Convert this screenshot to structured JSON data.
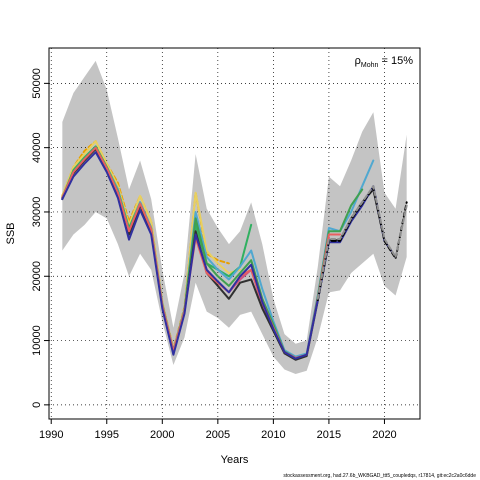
{
  "chart_data": {
    "type": "line",
    "title": "",
    "xlabel": "Years",
    "ylabel": "SSB",
    "xlim": [
      1989.8,
      2023.2
    ],
    "ylim": [
      -2200,
      55500
    ],
    "x_ticks": [
      1990,
      1995,
      2000,
      2005,
      2010,
      2015,
      2020
    ],
    "y_ticks": [
      0,
      10000,
      20000,
      30000,
      40000,
      50000
    ],
    "grid": true,
    "grid_style": "dotted",
    "annotation": {
      "rho_symbol": "ρ",
      "rho_subscript": "Mohn",
      "rho_value": " = 15%"
    },
    "footer": "stockassessment.org, had.27.6b_WKBGAD_ttt5_coupledqs, r17814, git:ec2c2a0c6dde",
    "band": {
      "x": [
        1991,
        1992,
        1993,
        1994,
        1995,
        1996,
        1997,
        1998,
        1999,
        2000,
        2001,
        2002,
        2003,
        2004,
        2005,
        2006,
        2007,
        2008,
        2009,
        2010,
        2011,
        2012,
        2013,
        2014,
        2015,
        2016,
        2017,
        2018,
        2019,
        2020,
        2021,
        2022
      ],
      "upper": [
        44000,
        48500,
        51000,
        53500,
        49000,
        41500,
        33500,
        38000,
        32000,
        21000,
        12000,
        20500,
        39000,
        30500,
        27500,
        25000,
        27000,
        31500,
        25000,
        16500,
        11000,
        9500,
        10000,
        21500,
        35500,
        34000,
        38000,
        42500,
        45500,
        33000,
        30500,
        42000
      ],
      "lower": [
        24000,
        26500,
        28000,
        30000,
        29000,
        25000,
        20000,
        23500,
        21000,
        13000,
        6200,
        10500,
        19000,
        14500,
        13500,
        12000,
        14000,
        14500,
        11000,
        7500,
        5500,
        4800,
        5300,
        10500,
        17500,
        17800,
        20500,
        22000,
        23500,
        18500,
        17000,
        23000
      ]
    },
    "series": [
      {
        "color": "#e8a000",
        "dashed": true,
        "x": [
          1991,
          1992,
          1993,
          1994,
          1995,
          1996,
          1997,
          1998,
          1999,
          2000,
          2001,
          2002,
          2003,
          2004,
          2005,
          2006
        ],
        "values": [
          32500,
          37000,
          39500,
          41000,
          37500,
          34500,
          28500,
          32500,
          28500,
          16000,
          8700,
          15200,
          33000,
          23500,
          22500,
          22000
        ]
      },
      {
        "color": "#e8d060",
        "x": [
          1991,
          1992,
          1993,
          1994,
          1995,
          1996,
          1997,
          1998,
          1999,
          2000,
          2001,
          2002,
          2003,
          2004,
          2005,
          2006,
          2007
        ],
        "values": [
          32500,
          37000,
          39000,
          41000,
          37500,
          34000,
          28000,
          32500,
          28500,
          16000,
          8600,
          15000,
          33000,
          24000,
          22000,
          20500,
          21000
        ]
      },
      {
        "color": "#d05080",
        "x": [
          1991,
          1992,
          1993,
          1994,
          1995,
          1996,
          1997,
          1998,
          1999,
          2000,
          2001,
          2002,
          2003,
          2004,
          2005,
          2006,
          2007,
          2008,
          2009,
          2010,
          2011,
          2012,
          2013,
          2014,
          2015
        ],
        "values": [
          32200,
          36200,
          38200,
          40000,
          36800,
          33000,
          27000,
          31500,
          27500,
          15500,
          8400,
          14800,
          27000,
          21000,
          19000,
          17500,
          19500,
          21000,
          15500,
          12000,
          8200,
          7200,
          7800,
          16500,
          26000
        ]
      },
      {
        "color": "#30b060",
        "x": [
          1991,
          1992,
          1993,
          1994,
          1995,
          1996,
          1997,
          1998,
          1999,
          2000,
          2001,
          2002,
          2003,
          2004,
          2005,
          2006,
          2007,
          2008
        ],
        "values": [
          32200,
          36500,
          38500,
          40200,
          37000,
          33500,
          27500,
          31500,
          27500,
          15500,
          8300,
          14600,
          28000,
          22000,
          21000,
          20000,
          21500,
          28000
        ]
      },
      {
        "color": "#50a8d0",
        "x": [
          1991,
          1992,
          1993,
          1994,
          1995,
          1996,
          1997,
          1998,
          1999,
          2000,
          2001,
          2002,
          2003,
          2004,
          2005,
          2006,
          2007,
          2008,
          2009,
          2010,
          2011,
          2012,
          2013,
          2014,
          2015,
          2016,
          2017,
          2018,
          2019
        ],
        "values": [
          32200,
          36200,
          38200,
          40000,
          36800,
          33500,
          27000,
          31500,
          27500,
          15800,
          8400,
          14900,
          30000,
          23000,
          21000,
          19500,
          21500,
          24000,
          18000,
          13000,
          8500,
          7500,
          8000,
          17000,
          27500,
          27000,
          30000,
          34000,
          38000
        ]
      },
      {
        "color": "#40a050",
        "x": [
          1991,
          1992,
          1993,
          1994,
          1995,
          1996,
          1997,
          1998,
          1999,
          2000,
          2001,
          2002,
          2003,
          2004,
          2005,
          2006,
          2007,
          2008,
          2009,
          2010,
          2011,
          2012,
          2013,
          2014,
          2015,
          2016,
          2017,
          2018
        ],
        "values": [
          32200,
          36200,
          38200,
          40000,
          36800,
          33200,
          27000,
          31300,
          27300,
          15600,
          8300,
          14700,
          29000,
          22000,
          20000,
          18500,
          20500,
          22500,
          16500,
          12500,
          8300,
          7300,
          7800,
          16800,
          27000,
          27000,
          31000,
          33500
        ]
      },
      {
        "color": "#303030",
        "x": [
          1991,
          1992,
          1993,
          1994,
          1995,
          1996,
          1997,
          1998,
          1999,
          2000,
          2001,
          2002,
          2003,
          2004,
          2005,
          2006,
          2007,
          2008,
          2009,
          2010,
          2011,
          2012,
          2013,
          2014,
          2015,
          2016,
          2017,
          2018,
          2019,
          2020
        ],
        "values": [
          32000,
          36000,
          38000,
          39800,
          36600,
          32800,
          26500,
          31000,
          27000,
          15300,
          8100,
          14500,
          27000,
          20500,
          18500,
          16500,
          19000,
          19500,
          15000,
          11500,
          8000,
          7000,
          7600,
          16200,
          25600,
          25600,
          29000,
          31500,
          33500,
          25500
        ]
      },
      {
        "color": "#e86060",
        "x": [
          1991,
          1992,
          1993,
          1994,
          1995,
          1996,
          1997,
          1998,
          1999,
          2000,
          2001,
          2002,
          2003,
          2004,
          2005,
          2006,
          2007,
          2008,
          2009,
          2010,
          2011,
          2012,
          2013,
          2014,
          2015,
          2016
        ],
        "values": [
          32200,
          36200,
          38200,
          40000,
          36800,
          33000,
          27000,
          31300,
          27300,
          15500,
          8300,
          14600,
          26000,
          20500,
          19000,
          17500,
          20000,
          21000,
          16000,
          12000,
          8200,
          7300,
          7800,
          16500,
          26500,
          26500
        ]
      },
      {
        "color": "#3030a0",
        "x": [
          1991,
          1992,
          1993,
          1994,
          1995,
          1996,
          1997,
          1998,
          1999,
          2000,
          2001,
          2002,
          2003,
          2004,
          2005,
          2006,
          2007,
          2008,
          2009,
          2010,
          2011,
          2012,
          2013,
          2014,
          2015,
          2016,
          2017,
          2018,
          2019,
          2020,
          2021
        ],
        "values": [
          32000,
          35500,
          37500,
          39300,
          36200,
          32200,
          25700,
          30300,
          26500,
          15000,
          7800,
          14200,
          26500,
          21000,
          19200,
          17500,
          20000,
          21800,
          16000,
          11800,
          8200,
          7200,
          7800,
          16300,
          25300,
          25300,
          28500,
          31000,
          34000,
          25500,
          23000
        ]
      },
      {
        "color": "#000000",
        "dashed": true,
        "x": [
          2014,
          2015,
          2016,
          2017,
          2018,
          2019,
          2020,
          2021,
          2022
        ],
        "values": [
          16300,
          25500,
          25500,
          28800,
          31300,
          33800,
          25500,
          22800,
          31500
        ]
      },
      {
        "color": "#909090",
        "dashed": true,
        "x": [
          2014,
          2015,
          2016,
          2017,
          2018,
          2019,
          2020,
          2021,
          2022
        ],
        "values": [
          16500,
          25800,
          25800,
          29000,
          31500,
          34000,
          25800,
          23000,
          31000
        ]
      }
    ]
  }
}
